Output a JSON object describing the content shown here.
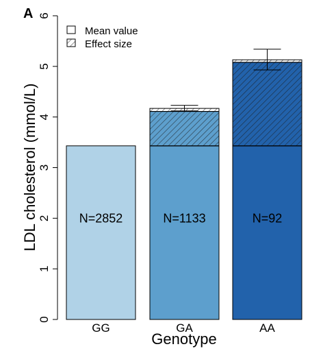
{
  "panel_label": "A",
  "chart_data": {
    "type": "bar",
    "stacked": true,
    "title": "",
    "xlabel": "Genotype",
    "ylabel": "LDL cholesterol (mmol/L)",
    "ylim": [
      0,
      6
    ],
    "yticks": [
      "0",
      "1",
      "2",
      "3",
      "4",
      "5",
      "6"
    ],
    "categories": [
      "GG",
      "GA",
      "AA"
    ],
    "bar_labels": [
      "N=2852",
      "N=1133",
      "N=92"
    ],
    "base_value": 3.43,
    "totals": [
      3.43,
      4.17,
      5.13
    ],
    "effect_tops": [
      3.43,
      4.11,
      5.08
    ],
    "error_bars": [
      null,
      {
        "low": 4.12,
        "high": 4.23
      },
      {
        "low": 4.93,
        "high": 5.34
      }
    ],
    "bar_colors": [
      "#b0d2e7",
      "#5d9fcd",
      "#2262ab"
    ],
    "legend": {
      "position": "top-left",
      "entries": [
        {
          "label": "Mean value",
          "style": "solid"
        },
        {
          "label": "Effect size",
          "style": "hatched"
        }
      ]
    },
    "grid": false
  }
}
